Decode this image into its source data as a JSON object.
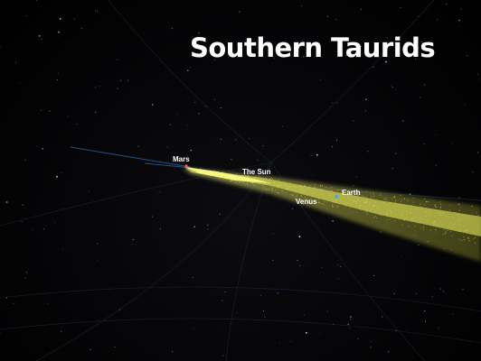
{
  "title": "Southern Taurids",
  "labels": {
    "mars": "Mars",
    "sun": "The Sun",
    "earth": "Earth",
    "venus": "Venus"
  },
  "colors": {
    "background": "#000000",
    "meteor_stream": "#e6e85a",
    "stream_core": "#fbfb8a",
    "earth_marker": "#4aa3ff",
    "mars_marker": "#ff5a5a",
    "orbit_lines": "#2a5a90",
    "grid": "#1c2a3a"
  }
}
